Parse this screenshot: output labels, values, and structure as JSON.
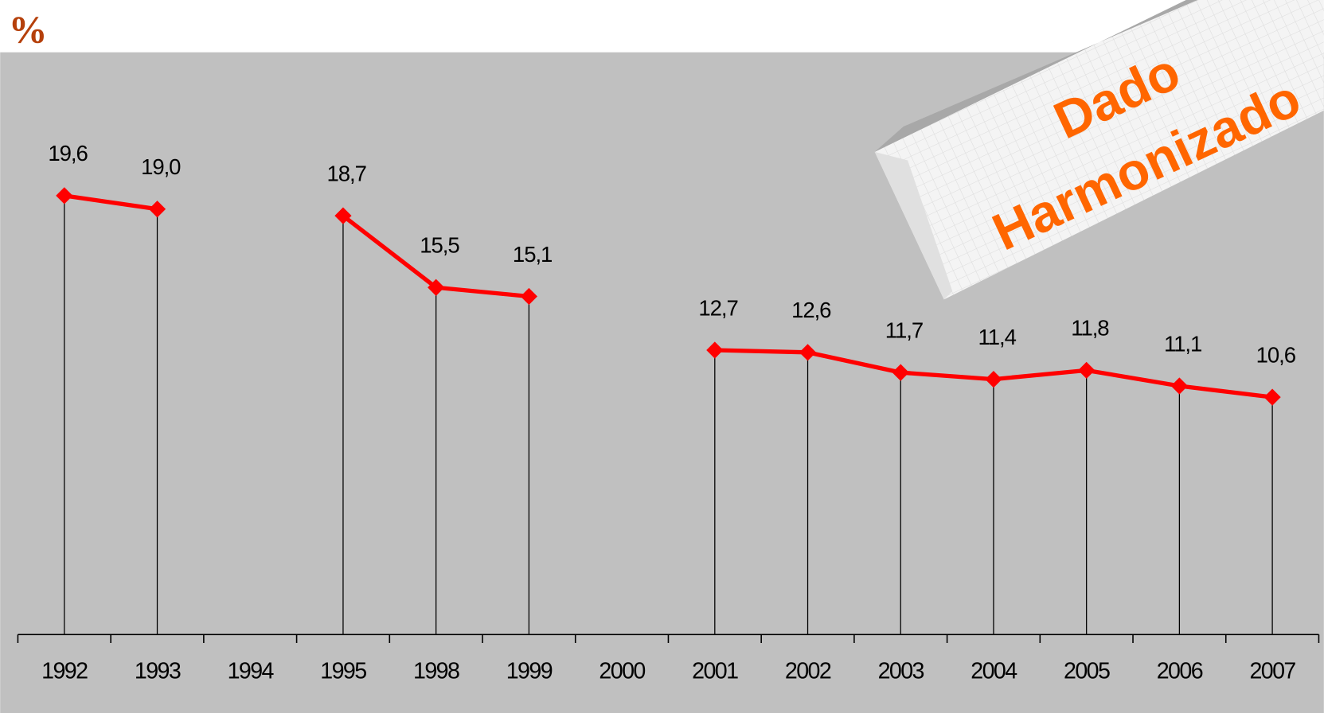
{
  "chart_data": {
    "type": "line",
    "title": "%",
    "categories": [
      "1992",
      "1993",
      "1994",
      "1995",
      "1998",
      "1999",
      "2000",
      "2001",
      "2002",
      "2003",
      "2004",
      "2005",
      "2006",
      "2007"
    ],
    "series": [
      {
        "color": "#ff0000",
        "values": [
          19.6,
          19.0,
          null,
          18.7,
          15.5,
          15.1,
          null,
          12.7,
          12.6,
          11.7,
          11.4,
          11.8,
          11.1,
          10.6
        ],
        "value_labels": [
          "19,6",
          "19,0",
          null,
          "18,7",
          "15,5",
          "15,1",
          null,
          "12,7",
          "12,6",
          "11,7",
          "11,4",
          "11,8",
          "11,1",
          "10,6"
        ]
      }
    ],
    "ylim": [
      0,
      26
    ],
    "annotations": [
      "Dado",
      "Harmonizado"
    ]
  }
}
